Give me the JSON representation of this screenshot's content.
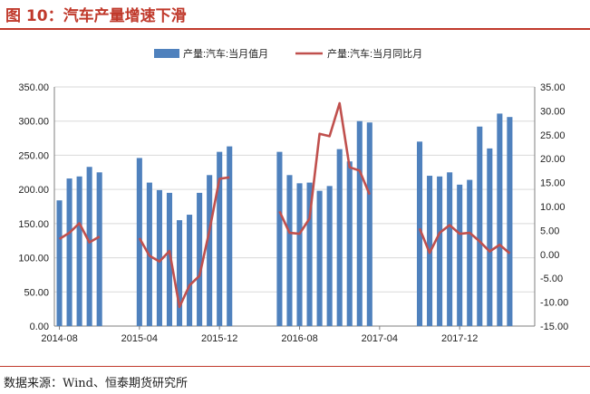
{
  "title": "图 10：汽车产量增速下滑",
  "source": "数据来源：Wind、恒泰期货研究所",
  "colors": {
    "bar": "#4f81bd",
    "line": "#c0504d",
    "title": "#c0392b",
    "axis": "#7f7f7f",
    "grid": "#d9d9d9"
  },
  "chart_data": {
    "type": "bar+line",
    "grid": true,
    "legend_position": "top",
    "y_left": {
      "min": 0,
      "max": 350,
      "ticks": [
        "0.00",
        "50.00",
        "100.00",
        "150.00",
        "200.00",
        "250.00",
        "300.00",
        "350.00"
      ]
    },
    "y_right": {
      "min": -15,
      "max": 35,
      "ticks": [
        "-15.00",
        "-10.00",
        "-5.00",
        "0.00",
        "5.00",
        "10.00",
        "15.00",
        "20.00",
        "25.00",
        "30.00",
        "35.00"
      ]
    },
    "x_tick_labels": [
      "2014-08",
      "2015-04",
      "2015-12",
      "2016-08",
      "2017-04",
      "2017-12"
    ],
    "x": [
      "2014-08",
      "2014-09",
      "2014-10",
      "2014-11",
      "2014-12",
      "2015-01",
      "2015-02",
      "2015-03",
      "2015-04",
      "2015-05",
      "2015-06",
      "2015-07",
      "2015-08",
      "2015-09",
      "2015-10",
      "2015-11",
      "2015-12",
      "2016-01",
      "2016-02",
      "2016-03",
      "2016-04",
      "2016-05",
      "2016-06",
      "2016-07",
      "2016-08",
      "2016-09",
      "2016-10",
      "2016-11",
      "2016-12",
      "2017-01",
      "2017-02",
      "2017-03",
      "2017-04",
      "2017-05",
      "2017-06",
      "2017-07",
      "2017-08",
      "2017-09",
      "2017-10",
      "2017-11",
      "2017-12",
      "2018-01",
      "2018-02",
      "2018-03",
      "2018-04",
      "2018-05",
      "2018-06",
      "2018-07"
    ],
    "series": [
      {
        "name": "产量:汽车:当月值月",
        "type": "bar",
        "axis": "left",
        "values": [
          184,
          216,
          219,
          233,
          225,
          null,
          null,
          null,
          246,
          210,
          199,
          195,
          155,
          163,
          195,
          221,
          255,
          263,
          null,
          null,
          null,
          null,
          255,
          221,
          209,
          210,
          198,
          205,
          259,
          241,
          300,
          298,
          null,
          null,
          null,
          null,
          270,
          220,
          219,
          225,
          207,
          214,
          292,
          260,
          311,
          306,
          null,
          null
        ]
      },
      {
        "name": "产量:汽车:当月同比月",
        "type": "line",
        "axis": "right",
        "values": [
          3.2,
          4.5,
          6.5,
          2.5,
          3.7,
          null,
          null,
          null,
          3.4,
          -0.3,
          -1.5,
          0.7,
          -11,
          -6.5,
          -4.5,
          5.0,
          15.8,
          16.1,
          null,
          null,
          null,
          null,
          9.0,
          4.5,
          4.3,
          7.5,
          25.2,
          24.7,
          31.6,
          18.2,
          17.5,
          12.5,
          null,
          null,
          null,
          null,
          5.4,
          0.3,
          4.5,
          6.1,
          4.3,
          4.5,
          2.7,
          0.6,
          2.0,
          0.2,
          null,
          null
        ]
      }
    ]
  }
}
